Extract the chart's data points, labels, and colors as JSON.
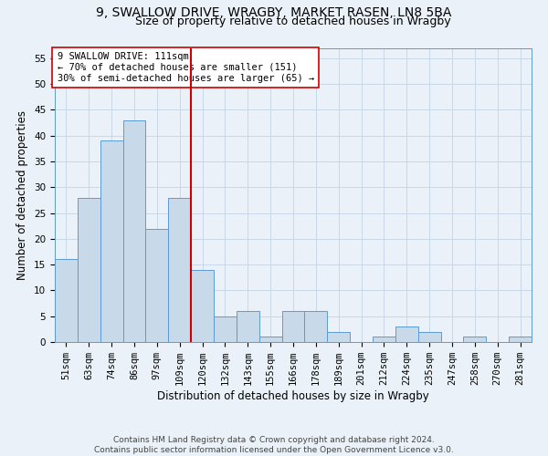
{
  "title1": "9, SWALLOW DRIVE, WRAGBY, MARKET RASEN, LN8 5BA",
  "title2": "Size of property relative to detached houses in Wragby",
  "xlabel": "Distribution of detached houses by size in Wragby",
  "ylabel": "Number of detached properties",
  "bar_values": [
    16,
    28,
    39,
    43,
    22,
    28,
    14,
    5,
    6,
    1,
    6,
    6,
    2,
    0,
    1,
    3,
    2,
    0,
    1,
    0,
    1
  ],
  "bin_labels": [
    "51sqm",
    "63sqm",
    "74sqm",
    "86sqm",
    "97sqm",
    "109sqm",
    "120sqm",
    "132sqm",
    "143sqm",
    "155sqm",
    "166sqm",
    "178sqm",
    "189sqm",
    "201sqm",
    "212sqm",
    "224sqm",
    "235sqm",
    "247sqm",
    "258sqm",
    "270sqm",
    "281sqm"
  ],
  "bar_color": "#c8daea",
  "bar_edge_color": "#5b9bd5",
  "grid_color": "#c8d8e8",
  "background_color": "#eaf1f8",
  "vline_bar_index": 5,
  "vline_color": "#cc0000",
  "annotation_text": "9 SWALLOW DRIVE: 111sqm\n← 70% of detached houses are smaller (151)\n30% of semi-detached houses are larger (65) →",
  "annotation_box_color": "#ffffff",
  "annotation_box_edge": "#cc0000",
  "ylim": [
    0,
    57
  ],
  "yticks": [
    0,
    5,
    10,
    15,
    20,
    25,
    30,
    35,
    40,
    45,
    50,
    55
  ],
  "footnote": "Contains HM Land Registry data © Crown copyright and database right 2024.\nContains public sector information licensed under the Open Government Licence v3.0.",
  "title1_fontsize": 10,
  "title2_fontsize": 9,
  "xlabel_fontsize": 8.5,
  "ylabel_fontsize": 8.5,
  "tick_fontsize": 7.5,
  "annot_fontsize": 7.5,
  "footnote_fontsize": 6.5
}
